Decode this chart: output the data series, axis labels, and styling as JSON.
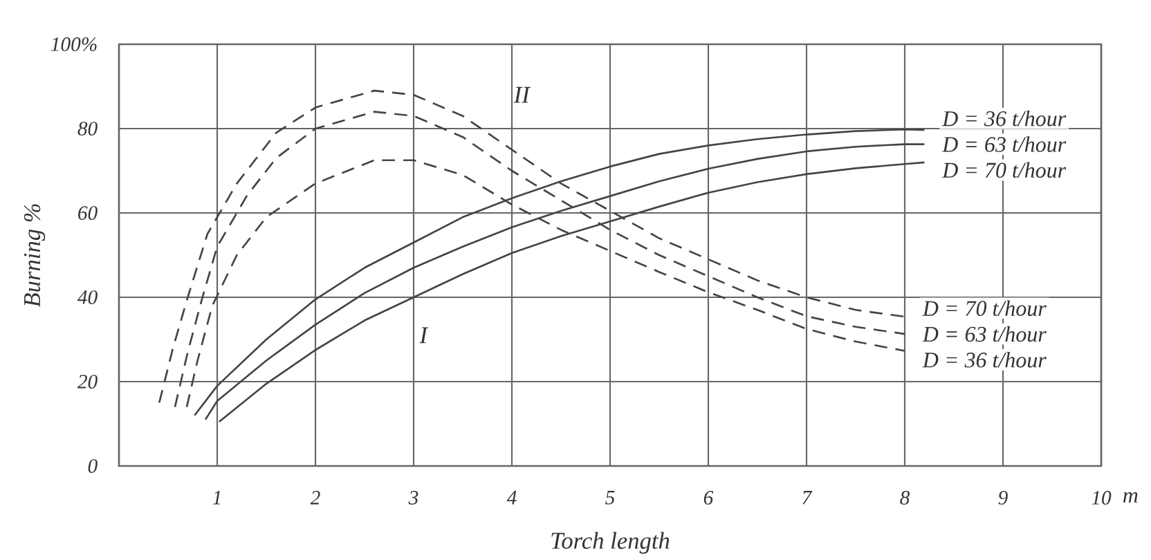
{
  "chart_data": {
    "type": "line",
    "xlabel": "Torch length",
    "ylabel": "Burning %",
    "xlim": [
      0,
      10
    ],
    "ylim": [
      0,
      100
    ],
    "xticks": [
      1,
      2,
      3,
      4,
      5,
      6,
      7,
      8,
      9,
      10
    ],
    "yticks": [
      0,
      20,
      40,
      60,
      80,
      {
        "value": 100,
        "label": "100%"
      }
    ],
    "grid": true,
    "marker": "none",
    "annotations": [
      "I",
      "II",
      "m"
    ],
    "series": [
      {
        "name": "D = 36 t/hour",
        "color": "#444444",
        "line_style": "solid",
        "x": [
          0.77,
          1,
          1.5,
          2,
          2.5,
          3,
          3.5,
          4,
          4.5,
          5,
          5.5,
          6,
          6.5,
          7,
          7.5,
          8,
          8.2
        ],
        "values": [
          12,
          19,
          30,
          39.5,
          47,
          53,
          59,
          63.5,
          67.5,
          71,
          74,
          76,
          77.5,
          78.6,
          79.4,
          79.8,
          79.7
        ]
      },
      {
        "name": "D = 63 t/hour",
        "color": "#444444",
        "line_style": "solid",
        "x": [
          0.88,
          1,
          1.5,
          2,
          2.5,
          3,
          3.5,
          4,
          4.5,
          5,
          5.5,
          6,
          6.5,
          7,
          7.5,
          8,
          8.2
        ],
        "values": [
          11,
          15.4,
          25,
          33.5,
          41,
          47,
          52,
          56.6,
          60.5,
          64,
          67.5,
          70.5,
          72.8,
          74.6,
          75.7,
          76.3,
          76.3
        ]
      },
      {
        "name": "D = 70 t/hour",
        "color": "#444444",
        "line_style": "solid",
        "x": [
          1.02,
          1.5,
          2,
          2.5,
          3,
          3.5,
          4,
          4.5,
          5,
          5.5,
          6,
          6.5,
          7,
          7.5,
          8,
          8.2
        ],
        "values": [
          10.5,
          19.5,
          27.5,
          34.5,
          40,
          45.5,
          50.5,
          54.5,
          58,
          61.5,
          64.8,
          67.3,
          69.2,
          70.6,
          71.6,
          72
        ]
      },
      {
        "name": "D = 70 t/hour",
        "color": "#444444",
        "line_style": "dashed",
        "x": [
          0.41,
          0.55,
          0.7,
          0.9,
          1.2,
          1.6,
          2,
          2.6,
          3,
          3.5,
          4,
          4.5,
          5,
          5.5,
          6,
          6.5,
          7,
          7.5,
          8
        ],
        "values": [
          15,
          28,
          40,
          55,
          67,
          79,
          85,
          89,
          88,
          83,
          75,
          67,
          60.5,
          54,
          49,
          44,
          40,
          37,
          35.4
        ]
      },
      {
        "name": "D = 63 t/hour",
        "color": "#444444",
        "line_style": "dashed",
        "x": [
          0.57,
          0.7,
          0.85,
          1,
          1.3,
          1.6,
          2,
          2.6,
          3,
          3.5,
          4,
          4.5,
          5,
          5.5,
          6,
          6.5,
          7,
          7.5,
          8
        ],
        "values": [
          14,
          27,
          40,
          52,
          64,
          73,
          80,
          84,
          83,
          78,
          70,
          63,
          56,
          50,
          45,
          40,
          35.5,
          33,
          31.3
        ]
      },
      {
        "name": "D = 36 t/hour",
        "color": "#444444",
        "line_style": "dashed",
        "x": [
          0.69,
          0.8,
          0.95,
          1.2,
          1.5,
          2,
          2.6,
          3,
          3.5,
          4,
          4.5,
          5,
          5.5,
          6,
          6.5,
          7,
          7.5,
          8
        ],
        "values": [
          14,
          25,
          38,
          50,
          59,
          67,
          72.5,
          72.5,
          69,
          62,
          56,
          51,
          46,
          41.2,
          37,
          32.5,
          29.5,
          27.3
        ]
      }
    ]
  }
}
